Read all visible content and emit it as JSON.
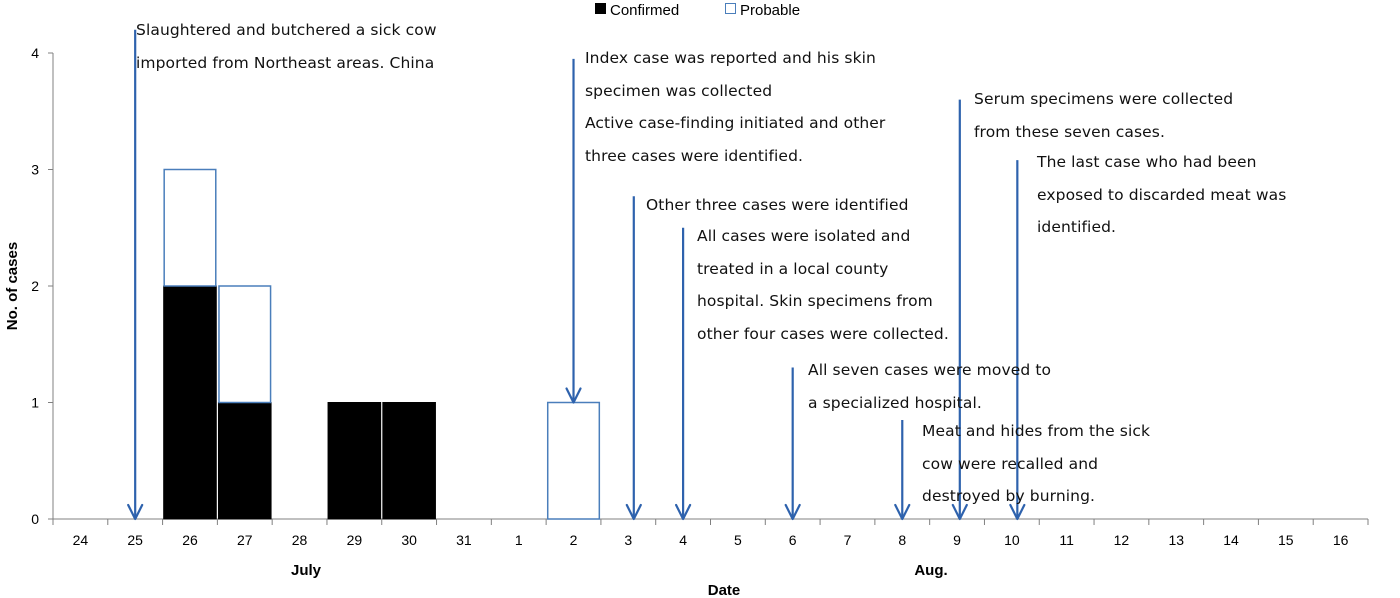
{
  "chart_data": {
    "type": "bar",
    "stacked": true,
    "title": "",
    "xlabel": "Date",
    "ylabel": "No. of cases",
    "ylim": [
      0,
      4
    ],
    "yticks": [
      0,
      1,
      2,
      3,
      4
    ],
    "categories": [
      "24",
      "25",
      "26",
      "27",
      "28",
      "29",
      "30",
      "31",
      "1",
      "2",
      "3",
      "4",
      "5",
      "6",
      "7",
      "8",
      "9",
      "10",
      "11",
      "12",
      "13",
      "14",
      "15",
      "16"
    ],
    "month_labels": [
      {
        "label": "July",
        "at": "28"
      },
      {
        "label": "Aug.",
        "at": "8"
      }
    ],
    "series": [
      {
        "name": "Confirmed",
        "color": "#000000",
        "values": [
          0,
          0,
          2,
          1,
          0,
          1,
          1,
          0,
          0,
          0,
          0,
          0,
          0,
          0,
          0,
          0,
          0,
          0,
          0,
          0,
          0,
          0,
          0,
          0
        ]
      },
      {
        "name": "Probable",
        "color": "#ffffff",
        "stroke": "#4a7ebb",
        "values": [
          0,
          0,
          1,
          1,
          0,
          0,
          0,
          0,
          0,
          1,
          0,
          0,
          0,
          0,
          0,
          0,
          0,
          0,
          0,
          0,
          0,
          0,
          0,
          0
        ]
      }
    ],
    "legend_position": "top",
    "grid": false,
    "annotations": [
      {
        "id": "a1",
        "date": "25",
        "lines": [
          "Slaughtered and butchered a sick cow",
          "imported from Northeast areas. China"
        ]
      },
      {
        "id": "a2",
        "date": "2",
        "lines": [
          "Index case was reported and his skin",
          "specimen was collected",
          "Active case-finding initiated and other",
          "three cases were identified."
        ]
      },
      {
        "id": "a3",
        "date": "3",
        "lines": [
          "Other three cases were identified"
        ]
      },
      {
        "id": "a4",
        "date": "4",
        "lines": [
          "All cases were isolated and",
          "treated in a local county",
          "hospital. Skin specimens from",
          "other four cases were collected."
        ]
      },
      {
        "id": "a5",
        "date": "6",
        "lines": [
          "All seven cases were moved to",
          "a specialized hospital."
        ]
      },
      {
        "id": "a6",
        "date": "8",
        "lines": [
          "Meat and hides from the sick",
          "cow were recalled and",
          "destroyed by burning."
        ]
      },
      {
        "id": "a7",
        "date": "9",
        "lines": [
          "Serum specimens were collected",
          "from these seven cases."
        ]
      },
      {
        "id": "a8",
        "date": "10",
        "lines": [
          "The last case who had been",
          "exposed to discarded meat was",
          "identified."
        ]
      }
    ]
  },
  "colors": {
    "confirmed_fill": "#000000",
    "probable_fill": "#ffffff",
    "probable_stroke": "#4a7ebb",
    "arrow": "#2e62ad",
    "axis": "#808080"
  }
}
